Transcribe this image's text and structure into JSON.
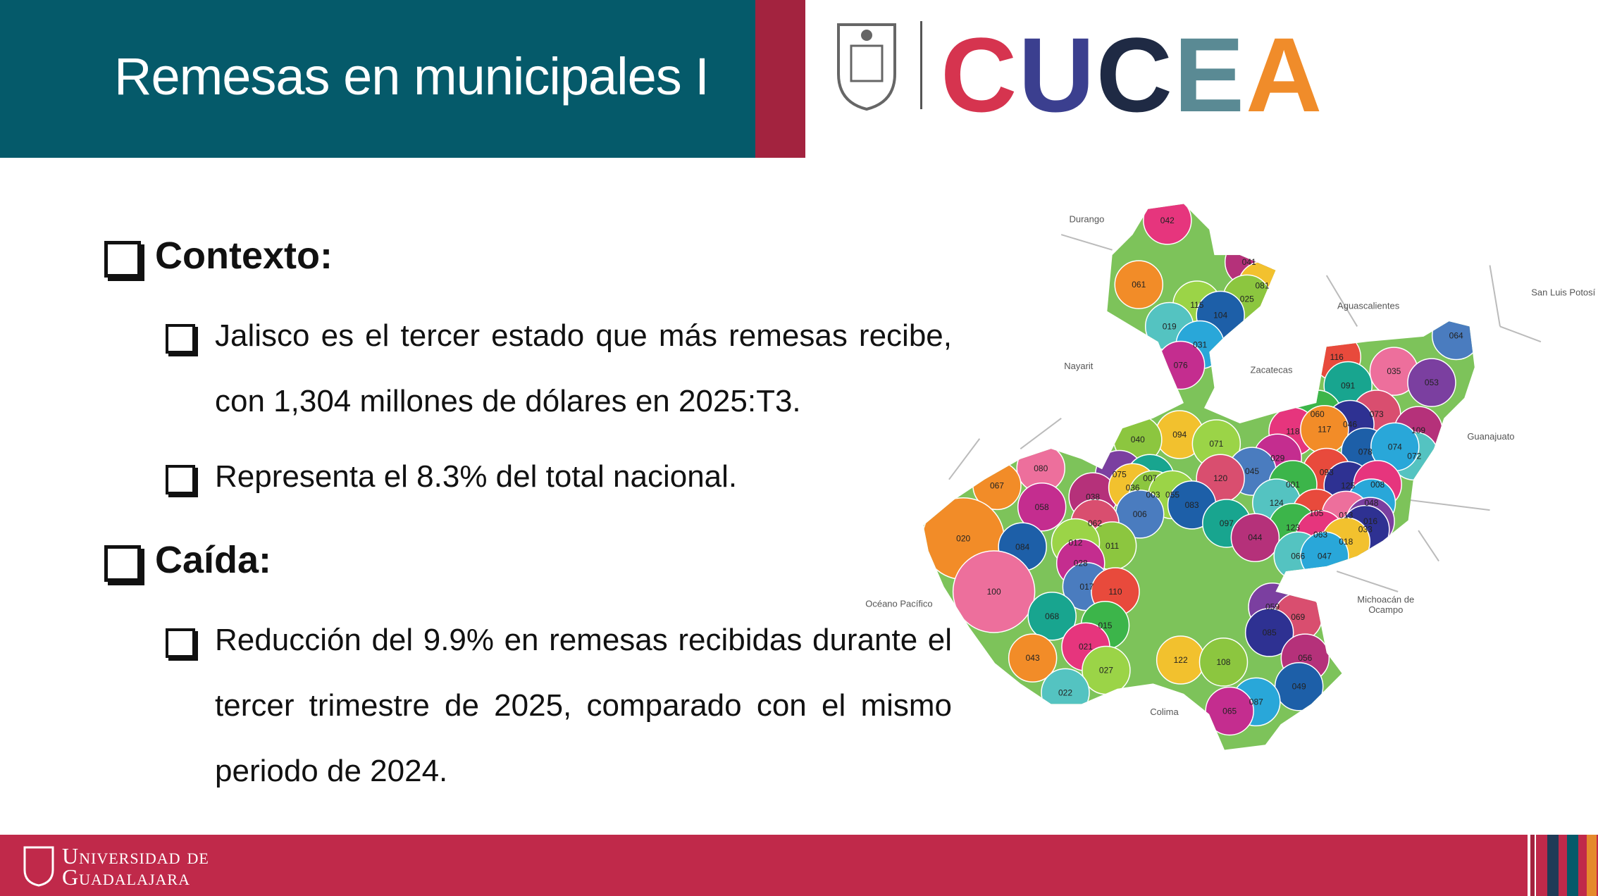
{
  "header": {
    "title": "Remesas en municipales I",
    "logo": "CUCEA"
  },
  "sections": [
    {
      "heading": "Contexto:",
      "items": [
        "Jalisco es el tercer estado que más remesas recibe, con 1,304 millones de dólares en 2025:T3.",
        "Representa el 8.3% del total nacional."
      ]
    },
    {
      "heading": "Caída:",
      "items": [
        "Reducción del 9.9% en remesas recibidas durante el tercer trimestre de 2025, comparado con el mismo periodo de 2024."
      ]
    }
  ],
  "map": {
    "regions": [
      "Durango",
      "San Luis Potosí",
      "Aguascalientes",
      "Nayarit",
      "Zacatecas",
      "Guanajuato",
      "Océano Pacífico",
      "Michoacán de",
      "Ocampo",
      "Colima"
    ],
    "municipalities": [
      "042",
      "061",
      "041",
      "081",
      "025",
      "115",
      "104",
      "019",
      "031",
      "076",
      "064",
      "116",
      "035",
      "053",
      "091",
      "073",
      "060",
      "046",
      "118",
      "117",
      "109",
      "094",
      "040",
      "071",
      "078",
      "072",
      "074",
      "029",
      "045",
      "093",
      "080",
      "075",
      "007",
      "120",
      "001",
      "125",
      "008",
      "067",
      "038",
      "036",
      "003",
      "055",
      "083",
      "124",
      "048",
      "058",
      "006",
      "105",
      "013",
      "016",
      "097",
      "062",
      "123",
      "033",
      "063",
      "020",
      "044",
      "018",
      "011",
      "012",
      "084",
      "066",
      "047",
      "028",
      "017",
      "110",
      "100",
      "059",
      "068",
      "069",
      "015",
      "085",
      "021",
      "043",
      "056",
      "122",
      "108",
      "027",
      "049",
      "022",
      "087",
      "065"
    ]
  },
  "footer": {
    "text": "Universidad de Guadalajara"
  }
}
